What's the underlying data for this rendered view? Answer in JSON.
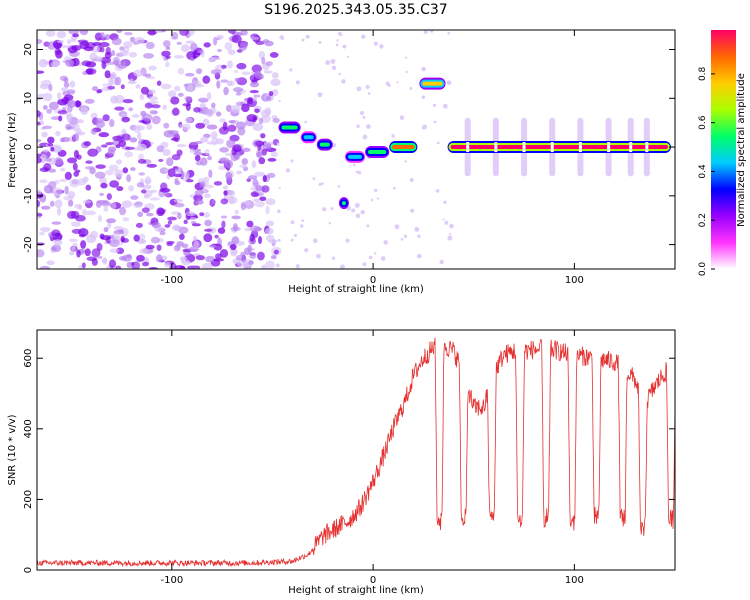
{
  "title": "S196.2025.343.05.35.C37",
  "chart_data": [
    {
      "type": "heatmap",
      "xlabel": "Height of straight line (km)",
      "ylabel": "Frequency (Hz)",
      "xlim": [
        -167,
        150
      ],
      "ylim": [
        -25,
        24
      ],
      "xticks": [
        -100,
        0,
        100
      ],
      "yticks": [
        -20,
        -10,
        0,
        10,
        20
      ],
      "colorbar": {
        "label": "Normalized spectral amplitude",
        "range": [
          0,
          0.98
        ],
        "ticks": [
          0.0,
          0.2,
          0.4,
          0.6,
          0.8
        ],
        "tick_labels": [
          "0.0",
          "0.2",
          "0.4",
          "0.6",
          "0.8"
        ],
        "colors": [
          "#ffffff",
          "#ff33ff",
          "#9900ff",
          "#0000ff",
          "#00ccff",
          "#00ff66",
          "#aaff00",
          "#ffcc00",
          "#ff6600",
          "#ff0066"
        ]
      },
      "noise_region": {
        "x": [
          -167,
          -48
        ],
        "frequency": [
          -25,
          24
        ],
        "amplitude": [
          0.05,
          0.2
        ]
      },
      "features": [
        {
          "x0": -47,
          "x1": -36,
          "freq": 4,
          "amp": 0.55
        },
        {
          "x0": -36,
          "x1": -28,
          "freq": 2,
          "amp": 0.45
        },
        {
          "x0": -28,
          "x1": -20,
          "freq": 0.5,
          "amp": 0.5
        },
        {
          "x0": -17,
          "x1": -12,
          "freq": -11.5,
          "amp": 0.55
        },
        {
          "x0": -14,
          "x1": -4,
          "freq": -2,
          "amp": 0.45
        },
        {
          "x0": -4,
          "x1": 8,
          "freq": -1,
          "amp": 0.5
        },
        {
          "x0": 8,
          "x1": 22,
          "freq": 0,
          "amp": 0.85
        },
        {
          "x0": 23,
          "x1": 36,
          "freq": 13,
          "amp": 0.75
        },
        {
          "x0": 37,
          "x1": 148,
          "freq": 0,
          "amp": 0.98
        }
      ],
      "gap_positions": [
        47,
        61,
        75,
        89,
        103,
        117,
        128,
        136
      ]
    },
    {
      "type": "line",
      "xlabel": "Height of straight line (km)",
      "ylabel": "SNR (10 * v/v)",
      "xlim": [
        -167,
        150
      ],
      "ylim": [
        0,
        680
      ],
      "xticks": [
        -100,
        0,
        100
      ],
      "yticks": [
        0,
        200,
        400,
        600
      ],
      "color": "#e53030",
      "x": [
        -167,
        -140,
        -100,
        -60,
        -40,
        -32,
        -25,
        -18,
        -12,
        -6,
        0,
        5,
        10,
        16,
        20,
        25,
        30,
        35,
        40,
        45,
        50,
        55,
        60,
        65,
        70,
        75,
        80,
        85,
        90,
        95,
        100,
        105,
        110,
        115,
        120,
        125,
        130,
        135,
        140,
        145,
        150
      ],
      "values": [
        20,
        20,
        20,
        20,
        25,
        45,
        95,
        120,
        140,
        180,
        250,
        320,
        400,
        480,
        550,
        600,
        630,
        640,
        620,
        560,
        460,
        460,
        560,
        610,
        620,
        620,
        625,
        625,
        625,
        615,
        610,
        605,
        600,
        595,
        590,
        570,
        540,
        470,
        520,
        560,
        570
      ],
      "dips": [
        {
          "x": 33,
          "value": 130
        },
        {
          "x": 45,
          "value": 140
        },
        {
          "x": 59,
          "value": 140
        },
        {
          "x": 73,
          "value": 130
        },
        {
          "x": 86,
          "value": 130
        },
        {
          "x": 99,
          "value": 130
        },
        {
          "x": 111,
          "value": 140
        },
        {
          "x": 124,
          "value": 130
        },
        {
          "x": 134,
          "value": 100
        },
        {
          "x": 148,
          "value": 130
        }
      ]
    }
  ]
}
